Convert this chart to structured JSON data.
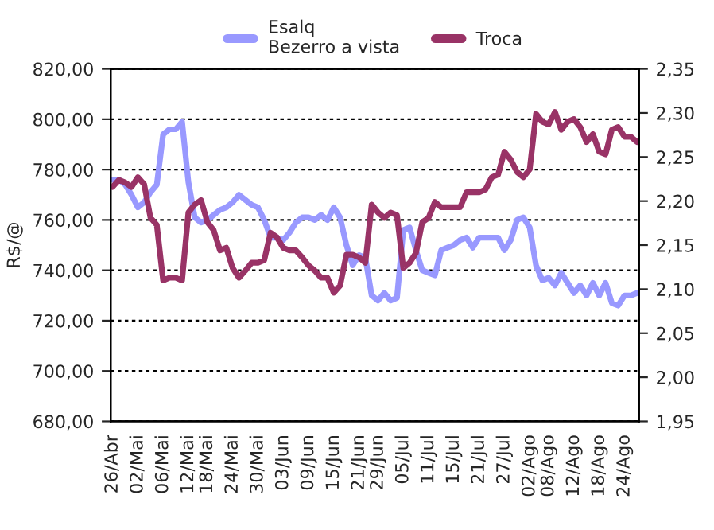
{
  "chart_data": {
    "type": "line",
    "ylabel": "R$/@",
    "categories": [
      "26/Abr",
      null,
      null,
      null,
      "02/Mai",
      null,
      null,
      null,
      "06/Mai",
      null,
      null,
      null,
      "12/Mai",
      null,
      null,
      "18/Mai",
      null,
      null,
      null,
      "24/Mai",
      null,
      null,
      null,
      "30/Mai",
      null,
      null,
      null,
      "03/Jun",
      null,
      null,
      null,
      "09/Jun",
      null,
      null,
      null,
      "15/Jun",
      null,
      null,
      null,
      "21/Jun",
      null,
      null,
      "29/Jun",
      null,
      null,
      null,
      "05/Jul",
      null,
      null,
      null,
      "11/Jul",
      null,
      null,
      null,
      "15/Jul",
      null,
      null,
      null,
      "21/Jul",
      null,
      null,
      null,
      "27/Jul",
      null,
      null,
      null,
      "02/Ago",
      null,
      null,
      "08/Ago",
      null,
      null,
      null,
      "12/Ago",
      null,
      null,
      null,
      "18/Ago",
      null,
      null,
      null,
      "24/Ago",
      null,
      null
    ],
    "series": [
      {
        "name": "Esalq\nBezerro a vista",
        "color": "#9999ff",
        "values": [
          776,
          776,
          774,
          770,
          765,
          767,
          771,
          774,
          794,
          796,
          796,
          799,
          775,
          761,
          759,
          760,
          762,
          764,
          765,
          767,
          770,
          768,
          766,
          765,
          760,
          753,
          753,
          752,
          755,
          759,
          761,
          761,
          760,
          762,
          760,
          765,
          761,
          750,
          742,
          746,
          745,
          730,
          728,
          731,
          728,
          729,
          756,
          757,
          748,
          740,
          739,
          738,
          748,
          749,
          750,
          752,
          753,
          749,
          753,
          753,
          753,
          753,
          748,
          752,
          760,
          761,
          757,
          742,
          736,
          737,
          734,
          739,
          735,
          731,
          734,
          730,
          735,
          730,
          735,
          727,
          726,
          730,
          730,
          731
        ]
      },
      {
        "name": "Troca",
        "color": "#993366",
        "axis": "y2",
        "values": [
          2.216,
          2.224,
          2.221,
          2.216,
          2.227,
          2.219,
          2.181,
          2.173,
          2.11,
          2.113,
          2.113,
          2.11,
          2.187,
          2.196,
          2.201,
          2.176,
          2.167,
          2.144,
          2.147,
          2.124,
          2.113,
          2.121,
          2.13,
          2.13,
          2.133,
          2.164,
          2.159,
          2.147,
          2.144,
          2.144,
          2.136,
          2.127,
          2.121,
          2.113,
          2.113,
          2.096,
          2.104,
          2.139,
          2.139,
          2.136,
          2.13,
          2.196,
          2.187,
          2.181,
          2.187,
          2.184,
          2.124,
          2.13,
          2.141,
          2.176,
          2.181,
          2.199,
          2.193,
          2.193,
          2.193,
          2.193,
          2.21,
          2.21,
          2.21,
          2.213,
          2.227,
          2.23,
          2.256,
          2.247,
          2.233,
          2.227,
          2.236,
          2.299,
          2.29,
          2.287,
          2.301,
          2.281,
          2.29,
          2.293,
          2.284,
          2.267,
          2.276,
          2.256,
          2.253,
          2.281,
          2.284,
          2.273,
          2.273,
          2.267
        ]
      }
    ],
    "ylim": [
      680,
      820
    ],
    "yticks": [
      {
        "value": 680,
        "label": "680,00"
      },
      {
        "value": 700,
        "label": "700,00"
      },
      {
        "value": 720,
        "label": "720,00"
      },
      {
        "value": 740,
        "label": "740,00"
      },
      {
        "value": 760,
        "label": "760,00"
      },
      {
        "value": 780,
        "label": "780,00"
      },
      {
        "value": 800,
        "label": "800,00"
      },
      {
        "value": 820,
        "label": "820,00"
      }
    ],
    "y2lim": [
      1.95,
      2.35
    ],
    "y2ticks": [
      {
        "value": 1.95,
        "label": "1,95"
      },
      {
        "value": 2.0,
        "label": "2,00"
      },
      {
        "value": 2.05,
        "label": "2,05"
      },
      {
        "value": 2.1,
        "label": "2,10"
      },
      {
        "value": 2.15,
        "label": "2,15"
      },
      {
        "value": 2.2,
        "label": "2,20"
      },
      {
        "value": 2.25,
        "label": "2,25"
      },
      {
        "value": 2.3,
        "label": "2,30"
      },
      {
        "value": 2.35,
        "label": "2,35"
      }
    ],
    "grid": "y",
    "legend": "top",
    "marker": "none",
    "line_style": "solid"
  }
}
